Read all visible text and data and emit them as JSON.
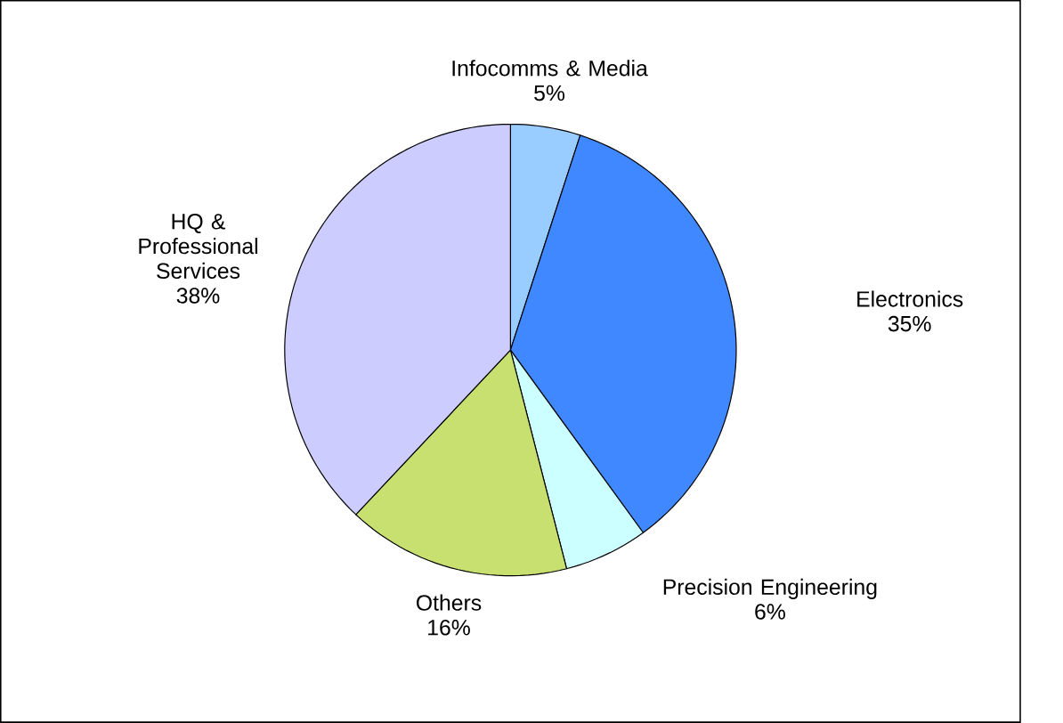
{
  "chart_data": {
    "type": "pie",
    "categories": [
      "Infocomms & Media",
      "Electronics",
      "Precision Engineering",
      "Others",
      "HQ & Professional Services"
    ],
    "values": [
      5,
      35,
      6,
      16,
      38
    ],
    "colors": [
      "#99ccff",
      "#3f88ff",
      "#ccffff",
      "#c8e070",
      "#ccccff"
    ],
    "value_labels": [
      "5%",
      "35%",
      "6%",
      "16%",
      "38%"
    ]
  }
}
